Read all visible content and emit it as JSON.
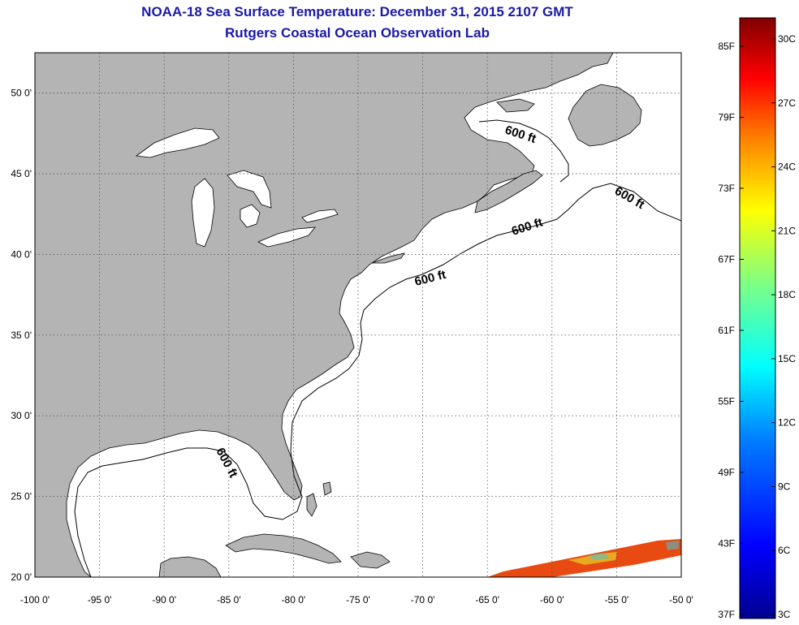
{
  "title": {
    "line1": "NOAA-18 Sea Surface Temperature:  December 31, 2015 2107 GMT",
    "line2": "Rutgers Coastal Ocean Observation Lab"
  },
  "map": {
    "lon_range": [
      -100,
      -50
    ],
    "lat_range": [
      20,
      52.5
    ],
    "lon_ticks": [
      "-100 0'",
      "-95 0'",
      "-90 0'",
      "-85 0'",
      "-80 0'",
      "-75 0'",
      "-70 0'",
      "-65 0'",
      "-60 0'",
      "-55 0'",
      "-50 0'"
    ],
    "lat_ticks": [
      "20 0'",
      "25 0'",
      "30 0'",
      "35 0'",
      "40 0'",
      "45 0'",
      "50 0'"
    ],
    "grid": "dotted",
    "land_color": "#b4b4b4",
    "water_color": "#ffffff",
    "contour_labels": [
      "600 ft",
      "600 ft",
      "600 ft",
      "600 ft",
      "600 ft"
    ]
  },
  "colorbar": {
    "fahrenheit": [
      "85F",
      "79F",
      "73F",
      "67F",
      "61F",
      "55F",
      "49F",
      "43F",
      "37F"
    ],
    "celsius": [
      "30C",
      "27C",
      "24C",
      "21C",
      "18C",
      "15C",
      "12C",
      "9C",
      "6C",
      "3C"
    ],
    "colors": [
      "#00008f",
      "#0000ff",
      "#0080ff",
      "#00ffff",
      "#80ff80",
      "#ffff00",
      "#ff8000",
      "#ff0000",
      "#800000"
    ]
  }
}
